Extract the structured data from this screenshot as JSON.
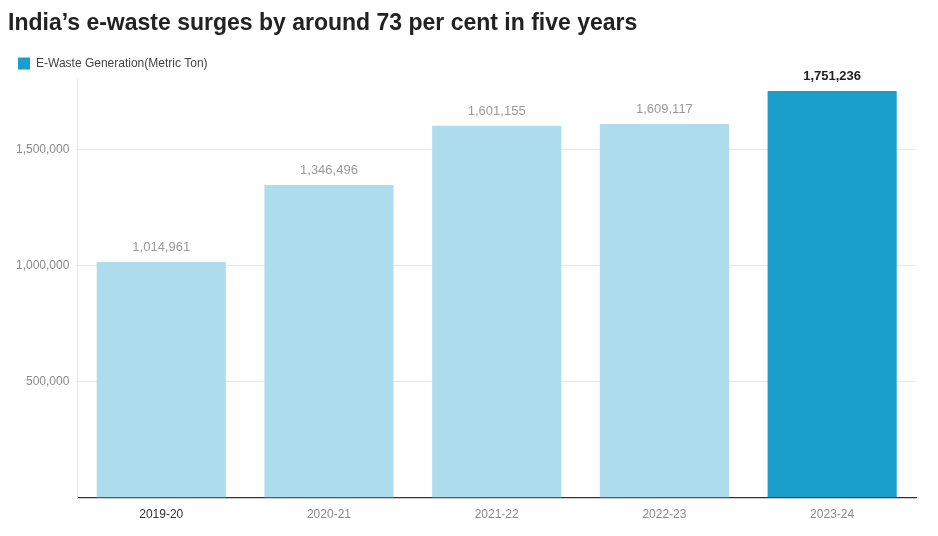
{
  "chart_data": {
    "type": "bar",
    "title": "India’s e-waste surges by around 73 per cent in five years",
    "categories": [
      "2019-20",
      "2020-21",
      "2021-22",
      "2022-23",
      "2023-24"
    ],
    "series": [
      {
        "name": "E-Waste Generation(Metric Ton)",
        "color": "#1a9fcc",
        "colors": [
          "#addcec",
          "#addcec",
          "#addcec",
          "#addcec",
          "#1a9fcc"
        ],
        "values": [
          1014961,
          1346496,
          1601155,
          1609117,
          1751236
        ],
        "value_labels": [
          "1,014,961",
          "1,346,496",
          "1,601,155",
          "1,609,117",
          "1,751,236"
        ]
      }
    ],
    "ylim": [
      0,
      1800000
    ],
    "yticks": [
      {
        "value": 500000,
        "label": "500,000"
      },
      {
        "value": 1000000,
        "label": "1,000,000"
      },
      {
        "value": 1500000,
        "label": "1,500,000"
      }
    ],
    "grid": true,
    "legend": "top-left",
    "data_labels": true
  }
}
